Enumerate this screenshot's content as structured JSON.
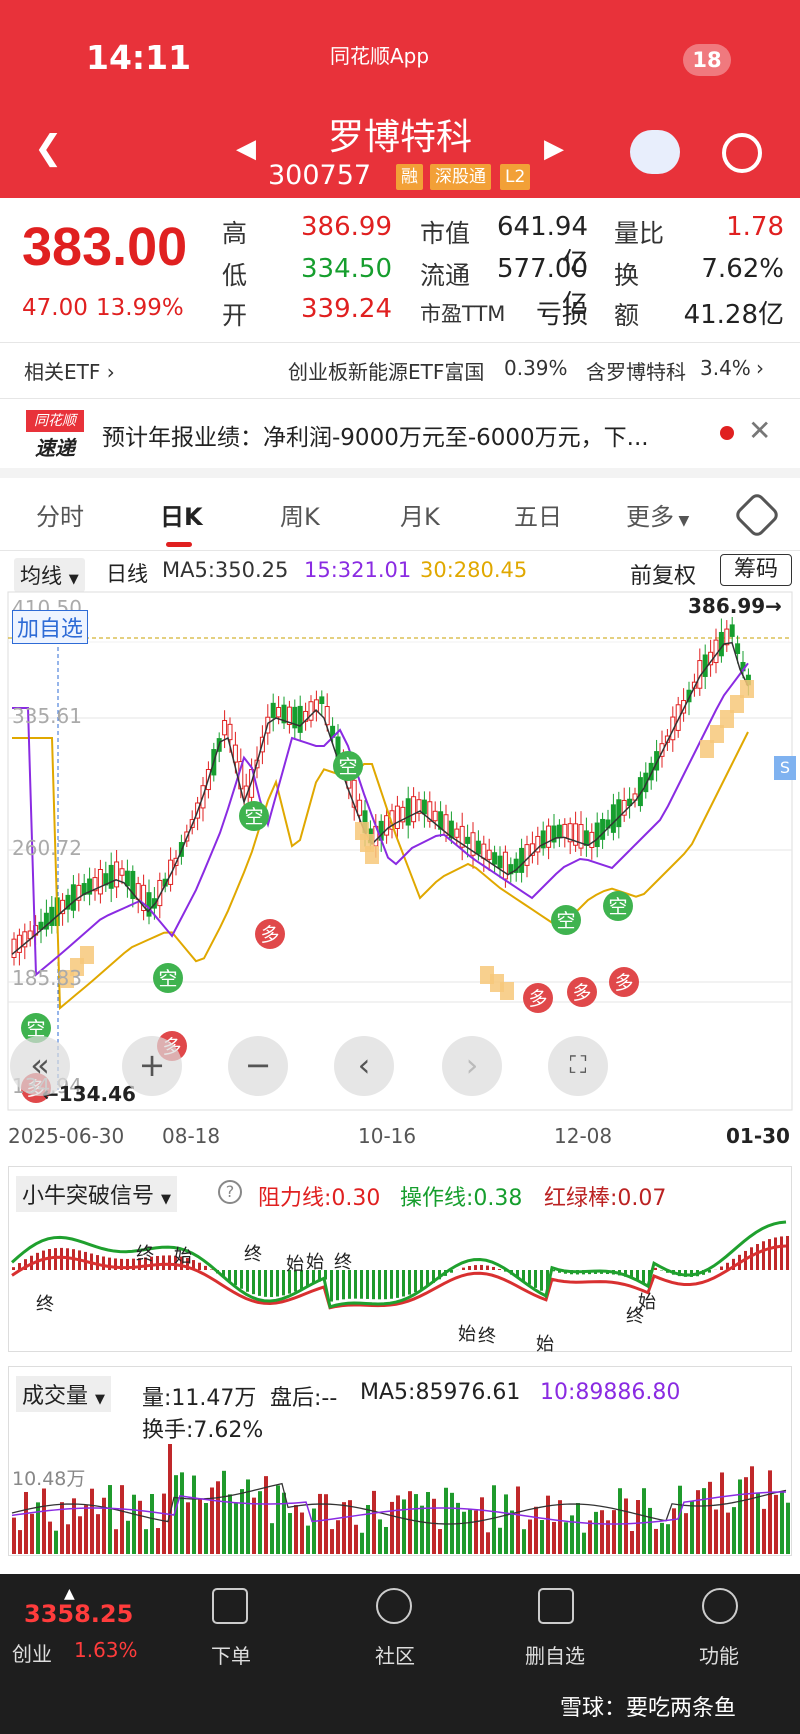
{
  "status": {
    "time": "14:11",
    "app": "同花顺App",
    "badge": "18"
  },
  "header": {
    "name": "罗博特科",
    "code": "300757",
    "tags": [
      "融",
      "深股通",
      "L2"
    ]
  },
  "quote": {
    "price": "383.00",
    "change": "47.00",
    "change_pct": "13.99%",
    "high_label": "高",
    "high": "386.99",
    "low_label": "低",
    "low": "334.50",
    "open_label": "开",
    "open": "339.24",
    "mcap_label": "市值",
    "mcap": "641.94亿",
    "float_label": "流通",
    "float": "577.00亿",
    "pe_label": "市盈TTM",
    "pe": "亏损",
    "vr_label": "量比",
    "vr": "1.78",
    "turn_label": "换",
    "turn": "7.62%",
    "amt_label": "额",
    "amt": "41.28亿"
  },
  "etf": {
    "label": "相关ETF",
    "name": "创业板新能源ETF富国",
    "pct": "0.39%",
    "hold": "含罗博特科",
    "hold_pct": "3.4%"
  },
  "news": {
    "logo_top": "同花顺",
    "logo_bottom": "速递",
    "text": "预计年报业绩：净利润-9000万元至-6000万元，下..."
  },
  "tabs": [
    "分时",
    "日K",
    "周K",
    "月K",
    "五日",
    "更多"
  ],
  "ma": {
    "selector": "均线",
    "period": "日线",
    "ma5": "MA5:350.25",
    "ma15": "15:321.01",
    "ma30": "30:280.45",
    "adjust": "前复权",
    "chips": "筹码"
  },
  "chart": {
    "y_labels": [
      "410.50",
      "335.61",
      "260.72",
      "185.83",
      "134.94"
    ],
    "high_marker": "386.99→",
    "low_marker": "←134.46",
    "add_watch": "加自选",
    "dates": [
      "2025-06-30",
      "08-18",
      "10-16",
      "12-08",
      "01-30"
    ],
    "signal_kong": "空",
    "signal_duo": "多",
    "s_badge": "S"
  },
  "ind": {
    "name": "小牛突破信号",
    "resist": "阻力线:0.30",
    "op": "操作线:0.38",
    "bar": "红绿棒:0.07",
    "labels": [
      "终",
      "始",
      "终",
      "始",
      "终",
      "始",
      "终",
      "始",
      "终",
      "始",
      "终",
      "始"
    ]
  },
  "vol": {
    "name": "成交量",
    "vol": "量:11.47万",
    "after": "盘后:--",
    "ma5": "MA5:85976.61",
    "ma10": "10:89886.80",
    "turn": "换手:7.62%",
    "y": "10.48万"
  },
  "bottom": {
    "index_val": "3358.25",
    "index_name": "创业",
    "index_pct": "1.63%",
    "items": [
      "下单",
      "社区",
      "删自选",
      "功能"
    ]
  },
  "watermark": "雪球：要吃两条鱼",
  "colors": {
    "header": "#e8323a",
    "up": "#e02020",
    "down": "#169e2e",
    "ma15": "#8a2be2",
    "ma30": "#e0a800"
  }
}
